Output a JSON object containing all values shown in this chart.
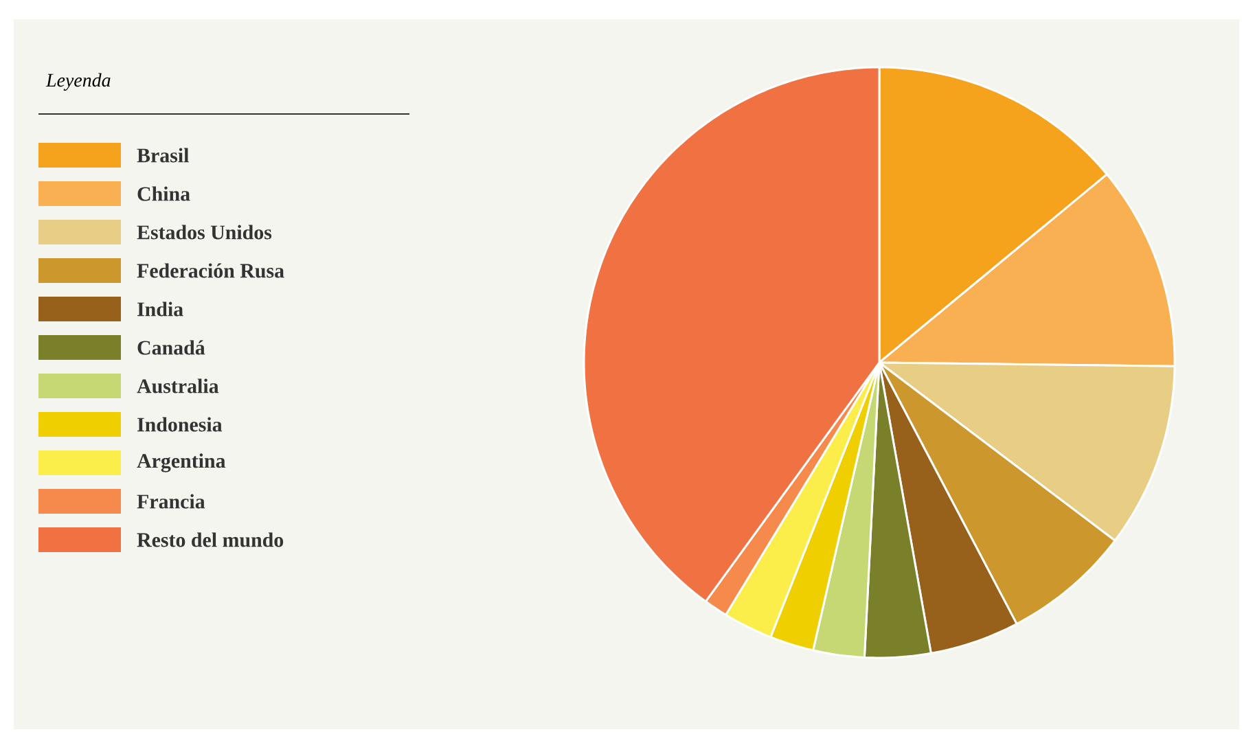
{
  "chart_data": {
    "type": "pie",
    "legend_title": "Leyenda",
    "legend": "left",
    "categories": [
      "Brasil",
      "China",
      "Estados Unidos",
      "Federación Rusa",
      "India",
      "Canadá",
      "Australia",
      "Indonesia",
      "Argentina",
      "Francia",
      "Resto del mundo"
    ],
    "values": [
      14.0,
      11.2,
      10.1,
      7.0,
      4.9,
      3.6,
      2.8,
      2.4,
      2.7,
      1.3,
      40.0
    ],
    "colors": [
      "#f5a21c",
      "#f9b052",
      "#e8cd85",
      "#cc982d",
      "#97611b",
      "#7a7f29",
      "#c6d874",
      "#f0cf00",
      "#fbee4a",
      "#f58a4c",
      "#f07142"
    ]
  }
}
